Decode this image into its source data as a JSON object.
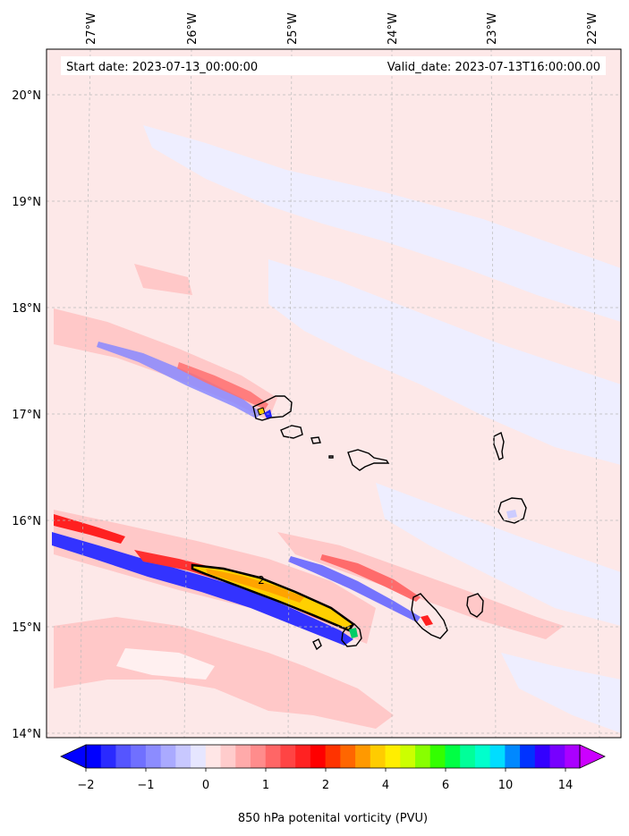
{
  "header": {
    "start_date": "Start date: 2023-07-13_00:00:00",
    "valid_date": "Valid_date: 2023-07-13T16:00:00.00"
  },
  "map": {
    "lon_labels": [
      "27°W",
      "26°W",
      "25°W",
      "24°W",
      "23°W",
      "22°W"
    ],
    "lat_labels": [
      "20°N",
      "19°N",
      "18°N",
      "17°N",
      "16°N",
      "15°N",
      "14°N"
    ],
    "contour_label": "2",
    "colors": {
      "background_pink": "#fde8e8",
      "light_blue": "#eeeeff",
      "pink_mid": "#ffc8c8",
      "red": "#ff4040",
      "blue": "#0000ff",
      "yellow": "#ffdd00",
      "orange": "#ffa500",
      "coast": "#000000"
    }
  },
  "colorbar": {
    "title": "850 hPa potenital vorticity (PVU)",
    "tick_labels": [
      "−2",
      "−1",
      "0",
      "1",
      "2",
      "4",
      "6",
      "10",
      "14"
    ],
    "colors": [
      "#0000ff",
      "#2a2aff",
      "#5555ff",
      "#7070ff",
      "#8c8cff",
      "#aaaaff",
      "#c8c8ff",
      "#e6e6ff",
      "#ffe6e6",
      "#ffcccc",
      "#ffaaaa",
      "#ff8c8c",
      "#ff6666",
      "#ff4444",
      "#ff2222",
      "#ff0000",
      "#ff3300",
      "#ff6600",
      "#ff9900",
      "#ffcc00",
      "#ffee00",
      "#ccff00",
      "#88ff00",
      "#33ff00",
      "#00ff44",
      "#00ff99",
      "#00ffcc",
      "#00ddff",
      "#0088ff",
      "#0033ff",
      "#3300ff",
      "#7700ff",
      "#aa00ff"
    ],
    "extend_low_color": "#0000ff",
    "extend_high_color": "#cc00ff"
  }
}
